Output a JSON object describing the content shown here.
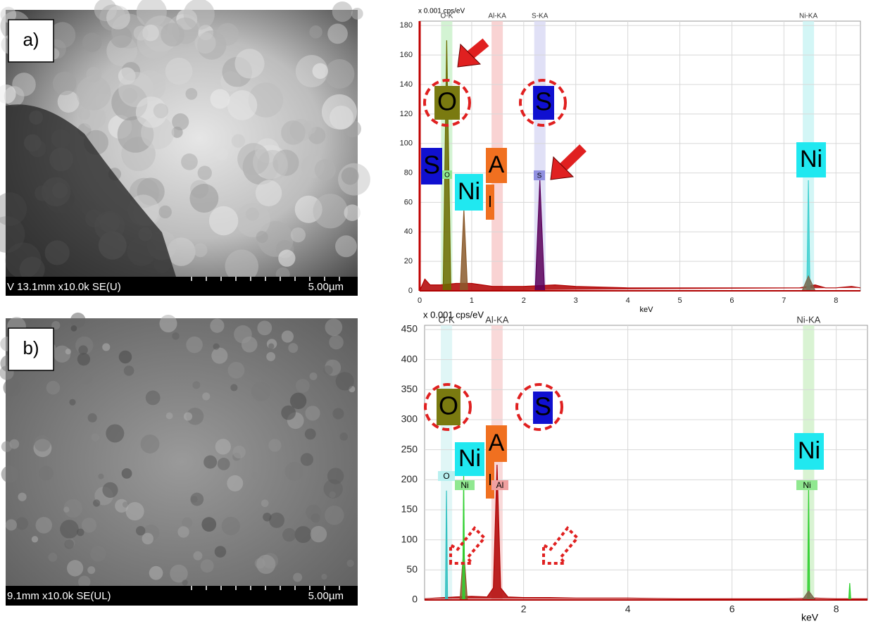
{
  "panels": [
    {
      "label": "a)",
      "sem_info": "V 13.1mm x10.0k SE(U)",
      "scale": "5.00µm"
    },
    {
      "label": "b)",
      "sem_info": "9.1mm x10.0k SE(UL)",
      "scale": "5.00µm"
    }
  ],
  "chart_data": [
    {
      "type": "line",
      "y_unit_label": "x 0.001 cps/eV",
      "x_label": "keV",
      "xlim": [
        0,
        8.47
      ],
      "ylim": [
        0,
        183
      ],
      "xticks": [
        0,
        1,
        2,
        3,
        4,
        5,
        6,
        7,
        8
      ],
      "yticks": [
        0,
        20,
        40,
        60,
        80,
        100,
        120,
        140,
        160,
        180
      ],
      "grid": true,
      "peak_lines": [
        {
          "name": "O-K",
          "x": 0.52,
          "color": "#c8f0c8"
        },
        {
          "name": "Al-KA",
          "x": 1.49,
          "color": "#f8c8c8"
        },
        {
          "name": "S-KA",
          "x": 2.31,
          "color": "#d8d8f4"
        },
        {
          "name": "Ni-KA",
          "x": 7.47,
          "color": "#c8f4f4"
        }
      ],
      "series": [
        {
          "color": "#b00000",
          "x": [
            0,
            0.1,
            0.2,
            0.4,
            0.7,
            1.0,
            1.2,
            1.4,
            1.6,
            2.0,
            2.6,
            3,
            4,
            5,
            6,
            7,
            7.3,
            7.6,
            7.8,
            8,
            8.3,
            8.47
          ],
          "values": [
            0,
            8,
            4,
            4,
            5,
            5,
            4,
            3,
            3,
            3,
            4,
            3,
            2,
            2,
            2,
            2,
            2,
            4,
            2,
            2,
            3,
            2
          ]
        },
        {
          "color": "#6b6b00",
          "x": [
            0.45,
            0.52,
            0.6
          ],
          "values": [
            0,
            170,
            0
          ]
        },
        {
          "color": "#8b5a2b",
          "x": [
            0.78,
            0.85,
            0.92
          ],
          "values": [
            0,
            55,
            0
          ]
        },
        {
          "color": "#5a005a",
          "x": [
            2.22,
            2.31,
            2.4
          ],
          "values": [
            0,
            75,
            0
          ]
        },
        {
          "color": "#40d0d0",
          "x": [
            7.44,
            7.47,
            7.5
          ],
          "values": [
            0,
            75,
            0
          ]
        },
        {
          "color": "#7a6a50",
          "x": [
            7.35,
            7.47,
            7.6
          ],
          "values": [
            0,
            10,
            0
          ]
        }
      ],
      "annotations": [
        "O",
        "S",
        "S",
        "Ni",
        "A",
        "l",
        "Ni",
        "O",
        "S"
      ]
    },
    {
      "type": "line",
      "y_unit_label": "x 0.001 cps/eV",
      "x_label": "keV",
      "xlim": [
        0.1,
        8.6
      ],
      "ylim": [
        0,
        457
      ],
      "xticks": [
        2,
        4,
        6,
        8
      ],
      "yticks": [
        0,
        50,
        100,
        150,
        200,
        250,
        300,
        350,
        400,
        450
      ],
      "grid": true,
      "peak_lines": [
        {
          "name": "O-K",
          "x": 0.52,
          "color": "#d8f4f4"
        },
        {
          "name": "Al-KA",
          "x": 1.49,
          "color": "#f8d0d0"
        },
        {
          "name": "Ni-KA",
          "x": 7.47,
          "color": "#d0f0c8"
        }
      ],
      "series": [
        {
          "color": "#b00000",
          "x": [
            0.1,
            0.3,
            0.5,
            0.7,
            1.0,
            1.3,
            1.42,
            1.49,
            1.56,
            1.7,
            2.0,
            2.5,
            3,
            4,
            5,
            6,
            7,
            7.6,
            8,
            8.3,
            8.6
          ],
          "values": [
            2,
            3,
            4,
            5,
            6,
            5,
            20,
            225,
            20,
            5,
            4,
            4,
            3,
            3,
            2,
            2,
            2,
            3,
            2,
            2,
            2
          ]
        },
        {
          "color": "#30c0c0",
          "x": [
            0.5,
            0.52,
            0.54
          ],
          "values": [
            0,
            182,
            0
          ]
        },
        {
          "color": "#8b5a2b",
          "x": [
            0.78,
            0.85,
            0.92
          ],
          "values": [
            0,
            85,
            0
          ]
        },
        {
          "color": "#30d030",
          "x": [
            0.83,
            0.85,
            0.87
          ],
          "values": [
            0,
            210,
            0
          ]
        },
        {
          "color": "#30d030",
          "x": [
            7.45,
            7.47,
            7.49
          ],
          "values": [
            0,
            185,
            0
          ]
        },
        {
          "color": "#7a6a50",
          "x": [
            7.35,
            7.47,
            7.6
          ],
          "values": [
            0,
            15,
            0
          ]
        },
        {
          "color": "#30d030",
          "x": [
            8.24,
            8.26,
            8.28
          ],
          "values": [
            0,
            28,
            0
          ]
        }
      ],
      "annotations": [
        "O",
        "S",
        "Ni",
        "A",
        "l",
        "Ni",
        "O",
        "Ni",
        "Al",
        "Ni"
      ]
    }
  ]
}
